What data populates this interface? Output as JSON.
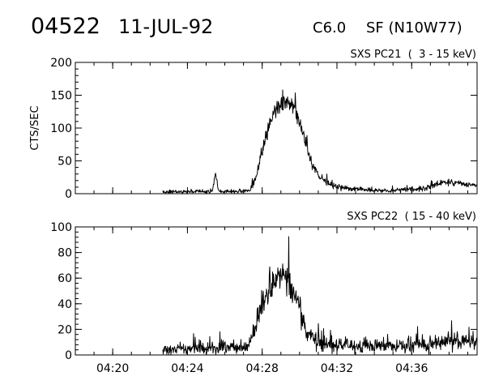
{
  "header": {
    "event_id": "04522",
    "date": "11-JUL-92",
    "flare_class": "C6.0",
    "location": "SF (N10W77)"
  },
  "chart_data": [
    {
      "type": "line",
      "title": "SXS PC21  (  3 - 15 keV)",
      "xlabel": "",
      "ylabel": "CTS/SEC",
      "xlim": [
        "04:18:00",
        "04:39:30"
      ],
      "ylim": [
        0,
        200
      ],
      "yticks": [
        0,
        50,
        100,
        150,
        200
      ],
      "xticks": [
        "04:20",
        "04:24",
        "04:28",
        "04:32",
        "04:36"
      ],
      "series": [
        {
          "x": [
            "04:22:40",
            "04:23:30",
            "04:24:20",
            "04:25:00",
            "04:25:20",
            "04:25:30",
            "04:25:40",
            "04:26:30",
            "04:27:20",
            "04:27:40",
            "04:28:00",
            "04:28:20",
            "04:28:40",
            "04:29:00",
            "04:29:20",
            "04:29:40",
            "04:30:00",
            "04:30:20",
            "04:30:40",
            "04:31:00",
            "04:31:30",
            "04:32:00",
            "04:33:00",
            "04:34:00",
            "04:35:00",
            "04:36:00",
            "04:36:40",
            "04:37:20",
            "04:38:00",
            "04:38:40",
            "04:39:30"
          ],
          "values": [
            3,
            3,
            4,
            3,
            4,
            30,
            4,
            3,
            5,
            25,
            65,
            100,
            125,
            135,
            140,
            132,
            110,
            75,
            45,
            28,
            16,
            10,
            7,
            5,
            5,
            6,
            8,
            14,
            18,
            15,
            12
          ]
        }
      ]
    },
    {
      "type": "line",
      "title": "SXS PC22  ( 15 - 40 keV)",
      "xlabel": "",
      "ylabel": "",
      "xlim": [
        "04:18:00",
        "04:39:30"
      ],
      "ylim": [
        0,
        100
      ],
      "yticks": [
        0,
        20,
        40,
        60,
        80,
        100
      ],
      "xticks": [
        "04:20",
        "04:24",
        "04:28",
        "04:32",
        "04:36"
      ],
      "series": [
        {
          "x": [
            "04:22:40",
            "04:23:30",
            "04:24:20",
            "04:25:10",
            "04:26:00",
            "04:27:00",
            "04:27:20",
            "04:27:40",
            "04:28:00",
            "04:28:20",
            "04:28:40",
            "04:29:00",
            "04:29:20",
            "04:29:40",
            "04:30:00",
            "04:30:20",
            "04:30:40",
            "04:31:00",
            "04:31:30",
            "04:32:00",
            "04:33:00",
            "04:34:00",
            "04:35:00",
            "04:36:00",
            "04:37:00",
            "04:37:40",
            "04:38:20",
            "04:39:00",
            "04:39:30"
          ],
          "values": [
            4,
            4,
            5,
            5,
            6,
            6,
            8,
            22,
            40,
            52,
            58,
            62,
            60,
            52,
            35,
            20,
            13,
            10,
            9,
            8,
            7,
            7,
            7,
            8,
            9,
            10,
            12,
            11,
            10
          ]
        }
      ]
    }
  ]
}
